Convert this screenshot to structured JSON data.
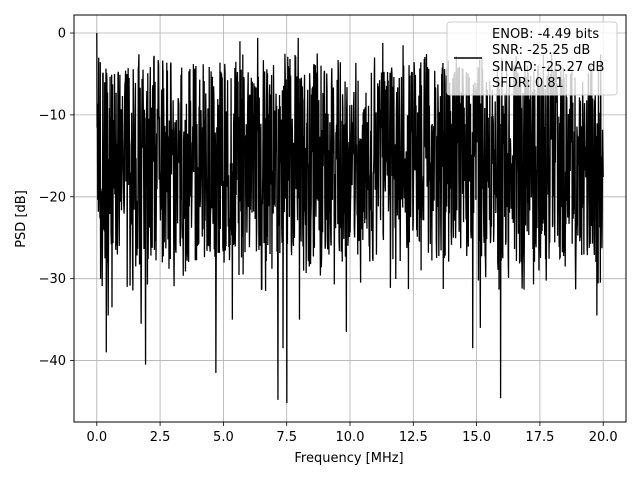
{
  "chart_data": {
    "type": "line",
    "xlabel": "Frequency [MHz]",
    "ylabel": "PSD [dB]",
    "xlim": [
      -0.9,
      20.9
    ],
    "ylim": [
      -47.5,
      2.2
    ],
    "x_ticks": [
      0.0,
      2.5,
      5.0,
      7.5,
      10.0,
      12.5,
      15.0,
      17.5,
      20.0
    ],
    "x_tick_labels": [
      "0.0",
      "2.5",
      "5.0",
      "7.5",
      "10.0",
      "12.5",
      "15.0",
      "17.5",
      "20.0"
    ],
    "y_ticks": [
      0,
      -10,
      -20,
      -30,
      -40
    ],
    "y_tick_labels": [
      "0",
      "−10",
      "−20",
      "−30",
      "−40"
    ],
    "grid": true,
    "legend_position": "upper-right",
    "legend_entries": [
      "ENOB: -4.49 bits",
      "SNR: -25.25 dB",
      "SINAD: -25.27 dB",
      "SFDR: 0.81"
    ],
    "series": [
      {
        "color": "#000000",
        "x_start": 0.0,
        "x_end": 20.0,
        "num_points": 1600,
        "upper_envelope_db": -5.5,
        "lower_envelope_db": -26.5,
        "values": [
          0.0,
          -3.5,
          -12.0,
          -25.0,
          -30.0,
          -8.0,
          -20.0,
          -35.0,
          -15.0
        ],
        "spikes": [
          {
            "x": 0.0,
            "y": 0.0
          },
          {
            "x": 0.08,
            "y": -3.0
          },
          {
            "x": 0.15,
            "y": -30.0
          },
          {
            "x": 0.38,
            "y": -39.0
          },
          {
            "x": 0.45,
            "y": -34.5
          },
          {
            "x": 0.6,
            "y": -33.5
          },
          {
            "x": 1.2,
            "y": -31.0
          },
          {
            "x": 1.75,
            "y": -35.5
          },
          {
            "x": 1.92,
            "y": -40.5
          },
          {
            "x": 4.7,
            "y": -41.5
          },
          {
            "x": 5.35,
            "y": -35.0
          },
          {
            "x": 7.15,
            "y": -44.8
          },
          {
            "x": 7.35,
            "y": -38.5
          },
          {
            "x": 7.5,
            "y": -45.2
          },
          {
            "x": 8.0,
            "y": -35.0
          },
          {
            "x": 9.85,
            "y": -36.5
          },
          {
            "x": 14.2,
            "y": -36.8
          },
          {
            "x": 14.85,
            "y": -38.5
          },
          {
            "x": 15.15,
            "y": -36.0
          },
          {
            "x": 15.95,
            "y": -44.6
          },
          {
            "x": 19.75,
            "y": -34.5
          },
          {
            "x": 5.65,
            "y": -1.0
          },
          {
            "x": 6.35,
            "y": -0.6
          },
          {
            "x": 7.95,
            "y": -0.6
          },
          {
            "x": 11.3,
            "y": -1.2
          },
          {
            "x": 12.1,
            "y": -1.5
          },
          {
            "x": 14.2,
            "y": -2.8
          },
          {
            "x": 16.0,
            "y": -3.0
          }
        ]
      }
    ]
  }
}
